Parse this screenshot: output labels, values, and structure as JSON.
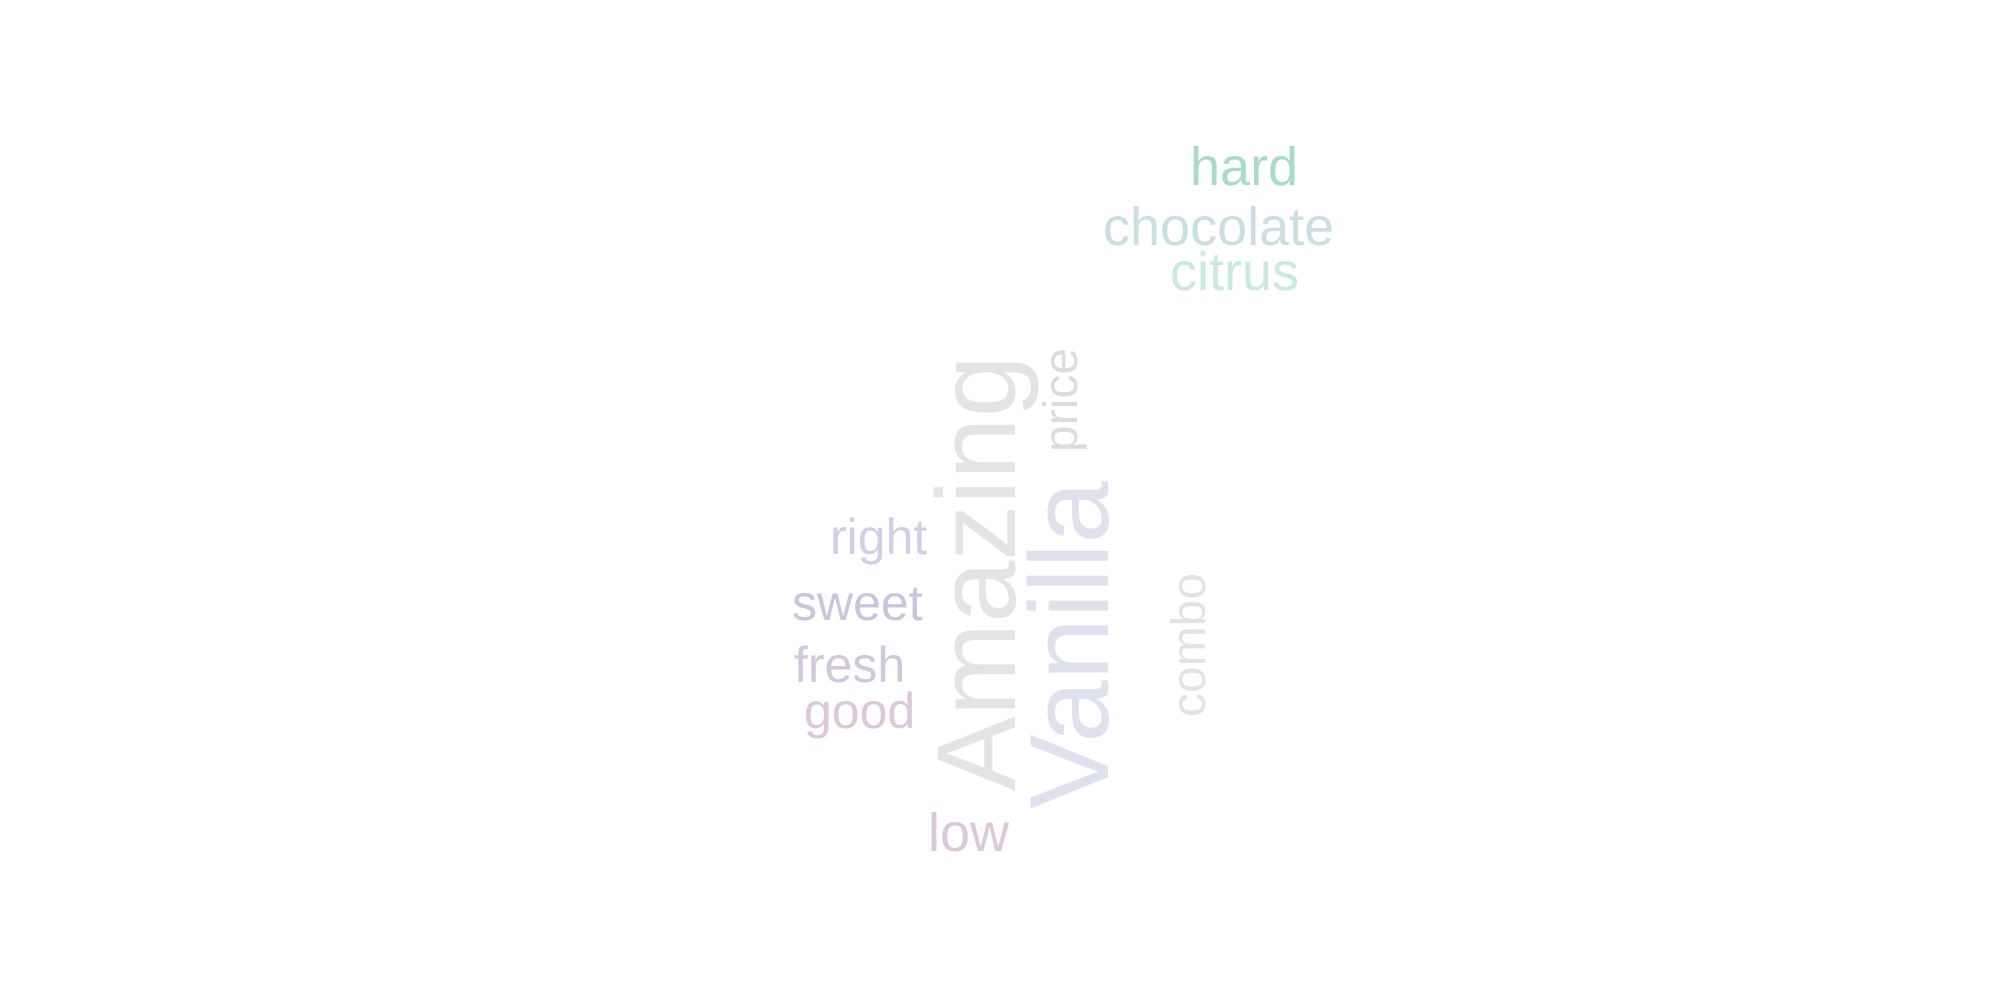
{
  "words": [
    {
      "text": "hard",
      "color": "#a9dcc6"
    },
    {
      "text": "chocolate",
      "color": "#c9dfe2"
    },
    {
      "text": "citrus",
      "color": "#c9e9e1"
    },
    {
      "text": "Amazing",
      "color": "#e4e4e4"
    },
    {
      "text": "Vanilla",
      "color": "#e0e1ef"
    },
    {
      "text": "price",
      "color": "#dcdcdc"
    },
    {
      "text": "right",
      "color": "#cfcfe6"
    },
    {
      "text": "sweet",
      "color": "#c8c6df"
    },
    {
      "text": "fresh",
      "color": "#d2c8dc"
    },
    {
      "text": "good",
      "color": "#dcc8da"
    },
    {
      "text": "combo",
      "color": "#e3e3e3"
    },
    {
      "text": "low",
      "color": "#ddc8d9"
    }
  ]
}
